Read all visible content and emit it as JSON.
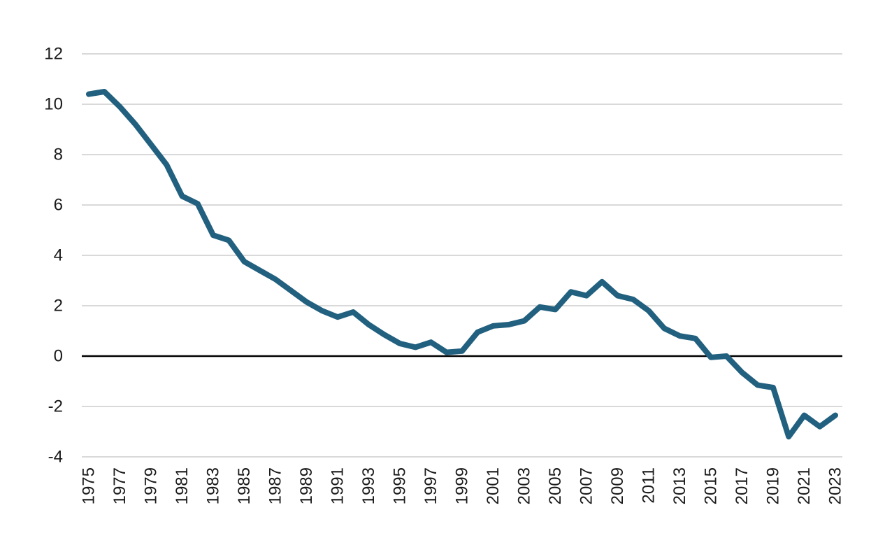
{
  "chart_data": {
    "type": "line",
    "title": "",
    "xlabel": "",
    "ylabel": "",
    "ylim": [
      -4,
      12
    ],
    "yticks": [
      -4,
      -2,
      0,
      2,
      4,
      6,
      8,
      10,
      12
    ],
    "ytick_labels": [
      "-4",
      "-2",
      "0",
      "2",
      "4",
      "6",
      "8",
      "10",
      "12"
    ],
    "xtick_labels": [
      "1975",
      "1977",
      "1979",
      "1981",
      "1983",
      "1985",
      "1987",
      "1989",
      "1991",
      "1993",
      "1995",
      "1997",
      "1999",
      "2001",
      "2003",
      "2005",
      "2007",
      "2009",
      "2011",
      "2013",
      "2015",
      "2017",
      "2019",
      "2021",
      "2023"
    ],
    "grid": true,
    "legend": "none",
    "x": [
      1975,
      1976,
      1977,
      1978,
      1979,
      1980,
      1981,
      1982,
      1983,
      1984,
      1985,
      1986,
      1987,
      1988,
      1989,
      1990,
      1991,
      1992,
      1993,
      1994,
      1995,
      1996,
      1997,
      1998,
      1999,
      2000,
      2001,
      2002,
      2003,
      2004,
      2005,
      2006,
      2007,
      2008,
      2009,
      2010,
      2011,
      2012,
      2013,
      2014,
      2015,
      2016,
      2017,
      2018,
      2019,
      2020,
      2021,
      2022,
      2023
    ],
    "series": [
      {
        "color": "#22607f",
        "values": [
          10.4,
          10.5,
          9.9,
          9.2,
          8.4,
          7.6,
          6.35,
          6.05,
          4.8,
          4.6,
          3.75,
          3.4,
          3.05,
          2.6,
          2.15,
          1.8,
          1.55,
          1.75,
          1.25,
          0.85,
          0.5,
          0.35,
          0.55,
          0.15,
          0.2,
          0.95,
          1.2,
          1.25,
          1.4,
          1.95,
          1.85,
          2.55,
          2.4,
          2.95,
          2.4,
          2.25,
          1.8,
          1.1,
          0.8,
          0.7,
          -0.05,
          0.0,
          -0.65,
          -1.15,
          -1.25,
          -3.2,
          -2.35,
          -2.8,
          -2.35
        ]
      }
    ]
  }
}
